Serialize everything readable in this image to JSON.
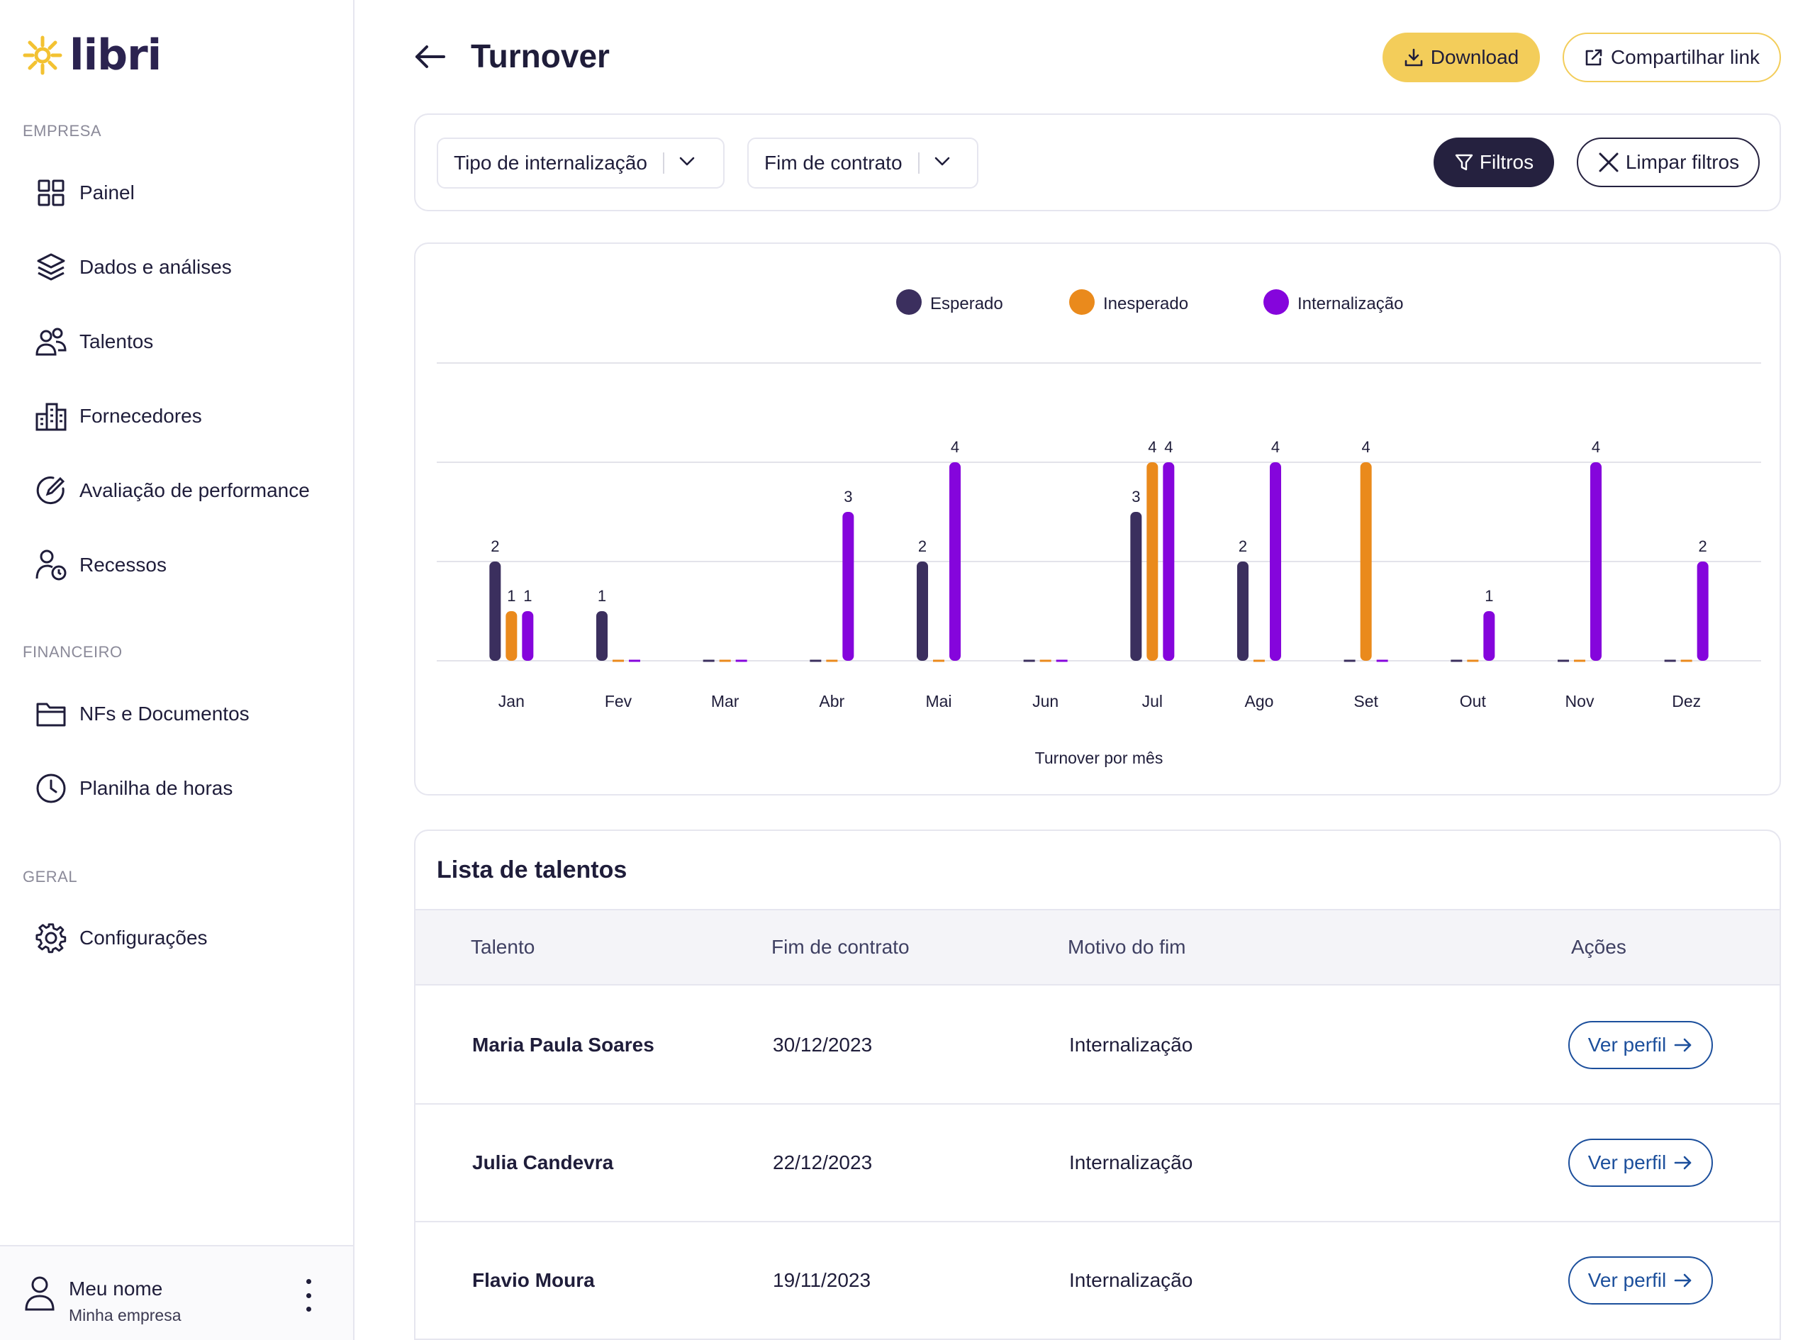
{
  "app": {
    "logo_text": "libri"
  },
  "sidebar": {
    "sections": [
      {
        "label": "EMPRESA",
        "items": [
          {
            "label": "Painel",
            "icon": "grid-icon"
          },
          {
            "label": "Dados e análises",
            "icon": "layers-icon"
          },
          {
            "label": "Talentos",
            "icon": "users-icon"
          },
          {
            "label": "Fornecedores",
            "icon": "buildings-icon"
          },
          {
            "label": "Avaliação de performance",
            "icon": "edit-circle-icon"
          },
          {
            "label": "Recessos",
            "icon": "user-clock-icon"
          }
        ]
      },
      {
        "label": "FINANCEIRO",
        "items": [
          {
            "label": "NFs e Documentos",
            "icon": "folder-icon"
          },
          {
            "label": "Planilha de horas",
            "icon": "clock-icon"
          }
        ]
      },
      {
        "label": "GERAL",
        "items": [
          {
            "label": "Configurações",
            "icon": "gear-icon"
          }
        ]
      }
    ],
    "user": {
      "name": "Meu nome",
      "company": "Minha empresa"
    }
  },
  "header": {
    "title": "Turnover",
    "download_label": "Download",
    "share_label": "Compartilhar link"
  },
  "filters": {
    "select_1": "Tipo de internalização",
    "select_2": "Fim de contrato",
    "filters_label": "Filtros",
    "clear_label": "Limpar filtros"
  },
  "chart_data": {
    "type": "bar",
    "title": "",
    "xlabel": "Turnover por mês",
    "ylabel": "",
    "categories": [
      "Jan",
      "Fev",
      "Mar",
      "Abr",
      "Mai",
      "Jun",
      "Jul",
      "Ago",
      "Set",
      "Out",
      "Nov",
      "Dez"
    ],
    "series": [
      {
        "name": "Esperado",
        "color": "#3b2f5e",
        "values": [
          2,
          1,
          0,
          0,
          2,
          0,
          3,
          2,
          0,
          0,
          0,
          0
        ]
      },
      {
        "name": "Inesperado",
        "color": "#ea8a1c",
        "values": [
          1,
          0,
          0,
          0,
          0,
          0,
          4,
          0,
          4,
          0,
          0,
          0
        ]
      },
      {
        "name": "Internalização",
        "color": "#8505dc",
        "values": [
          1,
          0,
          0,
          3,
          4,
          0,
          4,
          4,
          0,
          1,
          4,
          2
        ]
      }
    ],
    "ylim": [
      0,
      6
    ],
    "grid": true,
    "legend": "top-center"
  },
  "table": {
    "title": "Lista de talentos",
    "columns": [
      "Talento",
      "Fim de contrato",
      "Motivo do fim",
      "Ações"
    ],
    "rows": [
      {
        "talento": "Maria Paula Soares",
        "fim": "30/12/2023",
        "motivo": "Internalização",
        "acao": "Ver perfil"
      },
      {
        "talento": "Julia Candevra",
        "fim": "22/12/2023",
        "motivo": "Internalização",
        "acao": "Ver perfil"
      },
      {
        "talento": "Flavio Moura",
        "fim": "19/11/2023",
        "motivo": "Internalização",
        "acao": "Ver perfil"
      }
    ]
  }
}
